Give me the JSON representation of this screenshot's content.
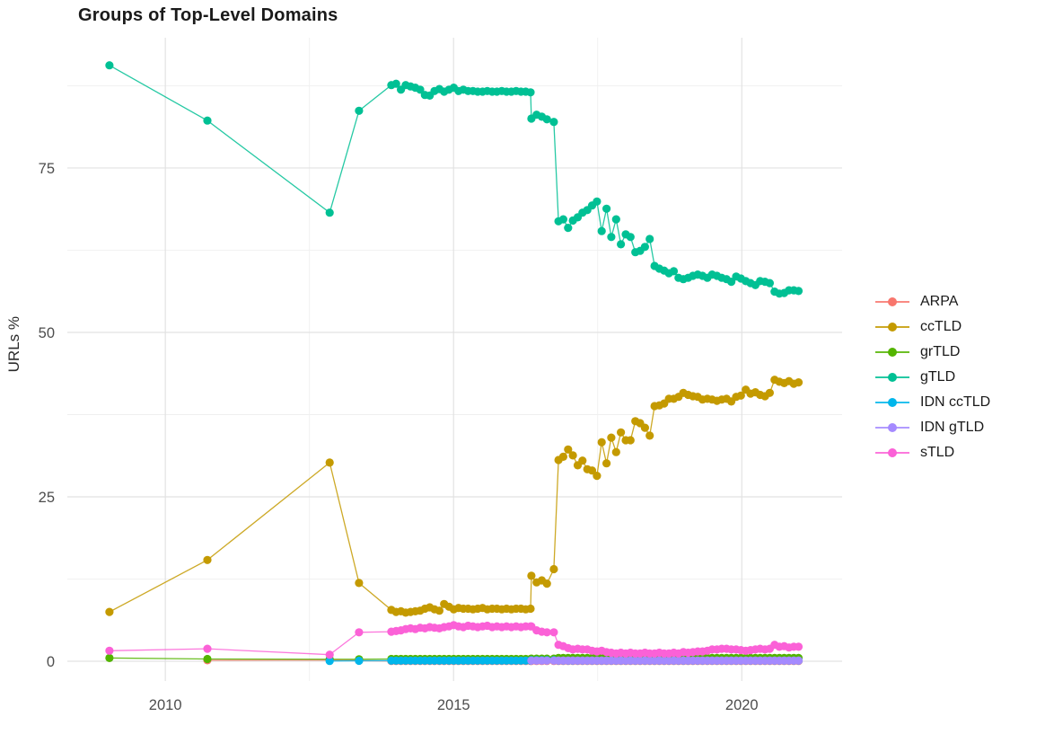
{
  "chart_data": {
    "type": "line",
    "title": "Groups of Top-Level Domains",
    "xlabel": "",
    "ylabel": "URLs %",
    "grid": true,
    "legend_position": "right",
    "xlim": [
      2008.3,
      2021.74
    ],
    "ylim": [
      -3,
      94.8
    ],
    "x_ticks": [
      2010,
      2015,
      2020
    ],
    "x_tick_labels": [
      "2010",
      "2015",
      "2020"
    ],
    "x_minor_ticks": [
      2012.5,
      2017.5
    ],
    "y_ticks": [
      0,
      25,
      50,
      75
    ],
    "y_tick_labels": [
      "0",
      "25",
      "50",
      "75"
    ],
    "y_minor_ticks": [
      12.5,
      37.5,
      62.5,
      87.5
    ],
    "colors": {
      "major_grid": "#e2e2e2",
      "minor_grid": "#efefef",
      "axis_text": "#4d4d4d"
    },
    "series": [
      {
        "name": "ARPA",
        "color": "#F8766D",
        "segments": [
          {
            "points": [
              [
                2010.73,
                0.15
              ],
              [
                2012.85,
                0.2
              ],
              [
                2013.36,
                0.1
              ]
            ]
          },
          {
            "start": 2013.92,
            "step": 0.0833,
            "n": 30,
            "value": 0.05
          },
          {
            "points": [
              [
                2016.35,
                0.05
              ],
              [
                2016.44,
                0.05
              ],
              [
                2016.53,
                0.05
              ],
              [
                2016.62,
                0.05
              ],
              [
                2016.74,
                0.05
              ]
            ]
          },
          {
            "start": 2016.82,
            "step": 0.0833,
            "n": 51,
            "value": 0.05
          }
        ]
      },
      {
        "name": "ccTLD",
        "color": "#C49A00",
        "segments": [
          {
            "points": [
              [
                2009.03,
                7.5
              ],
              [
                2010.73,
                15.4
              ],
              [
                2012.85,
                30.2
              ],
              [
                2013.36,
                11.9
              ]
            ]
          },
          {
            "start": 2013.92,
            "step": 0.0833,
            "values": [
              7.8,
              7.5,
              7.6,
              7.4,
              7.5,
              7.6,
              7.7,
              8.0,
              8.2,
              7.9,
              7.7,
              8.7,
              8.3,
              7.9,
              8.1,
              8.0,
              8.0,
              7.9,
              8.0,
              8.1,
              7.9,
              8.0,
              8.0,
              7.9,
              8.0,
              7.9,
              8.0,
              8.0,
              7.9,
              8.0
            ]
          },
          {
            "points": [
              [
                2016.35,
                13.0
              ],
              [
                2016.44,
                12.0
              ],
              [
                2016.53,
                12.3
              ],
              [
                2016.62,
                11.8
              ],
              [
                2016.74,
                14.0
              ]
            ]
          },
          {
            "start": 2016.82,
            "step": 0.0833,
            "values": [
              30.6,
              31.1,
              32.2,
              31.3,
              29.8,
              30.5,
              29.2,
              29.0,
              28.2,
              33.3,
              30.1,
              34.0,
              31.8,
              34.8,
              33.6,
              33.6,
              36.5,
              36.2,
              35.5,
              34.3,
              38.8,
              38.9,
              39.2,
              39.9,
              39.9,
              40.2,
              40.8,
              40.5,
              40.3,
              40.2,
              39.8,
              39.9,
              39.8,
              39.6,
              39.8,
              39.9,
              39.5,
              40.2,
              40.4,
              41.3,
              40.7,
              40.9,
              40.5,
              40.3,
              40.8,
              42.8,
              42.5,
              42.3,
              42.6,
              42.2,
              42.4
            ]
          }
        ]
      },
      {
        "name": "grTLD",
        "color": "#53B400",
        "segments": [
          {
            "points": [
              [
                2009.03,
                0.5
              ],
              [
                2010.73,
                0.35
              ],
              [
                2012.85,
                0.3
              ],
              [
                2013.36,
                0.3
              ]
            ]
          },
          {
            "start": 2013.92,
            "step": 0.0833,
            "n": 30,
            "value": 0.35
          },
          {
            "points": [
              [
                2016.35,
                0.4
              ],
              [
                2016.44,
                0.4
              ],
              [
                2016.53,
                0.4
              ],
              [
                2016.62,
                0.4
              ],
              [
                2016.74,
                0.4
              ]
            ]
          },
          {
            "start": 2016.82,
            "step": 0.0833,
            "n": 51,
            "value": 0.5
          }
        ]
      },
      {
        "name": "gTLD",
        "color": "#00C094",
        "segments": [
          {
            "points": [
              [
                2009.03,
                90.6
              ],
              [
                2010.73,
                82.2
              ],
              [
                2012.85,
                68.2
              ],
              [
                2013.36,
                83.7
              ]
            ]
          },
          {
            "start": 2013.92,
            "step": 0.0833,
            "values": [
              87.6,
              87.8,
              86.9,
              87.6,
              87.4,
              87.2,
              86.9,
              86.1,
              86.0,
              86.7,
              87.0,
              86.6,
              86.9,
              87.2,
              86.7,
              86.9,
              86.7,
              86.7,
              86.6,
              86.6,
              86.7,
              86.6,
              86.6,
              86.7,
              86.6,
              86.6,
              86.7,
              86.6,
              86.6,
              86.5
            ]
          },
          {
            "points": [
              [
                2016.35,
                82.5
              ],
              [
                2016.44,
                83.1
              ],
              [
                2016.53,
                82.8
              ],
              [
                2016.62,
                82.4
              ],
              [
                2016.74,
                82.0
              ]
            ]
          },
          {
            "start": 2016.82,
            "step": 0.0833,
            "values": [
              66.9,
              67.2,
              65.9,
              67.0,
              67.5,
              68.2,
              68.6,
              69.3,
              69.9,
              65.4,
              68.8,
              64.5,
              67.2,
              63.4,
              64.9,
              64.5,
              62.2,
              62.4,
              63.0,
              64.2,
              60.1,
              59.7,
              59.4,
              59.0,
              59.3,
              58.3,
              58.1,
              58.3,
              58.6,
              58.8,
              58.6,
              58.3,
              58.8,
              58.6,
              58.3,
              58.1,
              57.7,
              58.5,
              58.2,
              57.8,
              57.5,
              57.2,
              57.8,
              57.7,
              57.5,
              56.2,
              55.9,
              56.0,
              56.4,
              56.4,
              56.3
            ]
          }
        ]
      },
      {
        "name": "IDN ccTLD",
        "color": "#00B6EB",
        "segments": [
          {
            "points": [
              [
                2012.85,
                0.05
              ],
              [
                2013.36,
                0.08
              ]
            ]
          },
          {
            "start": 2013.92,
            "step": 0.0833,
            "n": 30,
            "value": 0.1
          },
          {
            "points": [
              [
                2016.35,
                0.15
              ],
              [
                2016.44,
                0.15
              ],
              [
                2016.53,
                0.15
              ],
              [
                2016.62,
                0.15
              ],
              [
                2016.74,
                0.15
              ]
            ]
          },
          {
            "start": 2016.82,
            "step": 0.0833,
            "n": 51,
            "value": 0.1
          }
        ]
      },
      {
        "name": "IDN gTLD",
        "color": "#A58AFF",
        "segments": [
          {
            "points": [
              [
                2016.35,
                0.1
              ],
              [
                2016.44,
                0.1
              ],
              [
                2016.53,
                0.1
              ],
              [
                2016.62,
                0.1
              ],
              [
                2016.74,
                0.1
              ]
            ]
          },
          {
            "start": 2016.82,
            "step": 0.0833,
            "n": 51,
            "value": 0.12
          }
        ]
      },
      {
        "name": "sTLD",
        "color": "#FB61D7",
        "segments": [
          {
            "points": [
              [
                2009.03,
                1.6
              ],
              [
                2010.73,
                1.9
              ],
              [
                2012.85,
                1.0
              ],
              [
                2013.36,
                4.4
              ]
            ]
          },
          {
            "start": 2013.92,
            "step": 0.0833,
            "values": [
              4.5,
              4.6,
              4.7,
              4.9,
              5.0,
              4.9,
              5.1,
              5.0,
              5.2,
              5.1,
              5.0,
              5.2,
              5.3,
              5.5,
              5.3,
              5.2,
              5.4,
              5.3,
              5.2,
              5.3,
              5.4,
              5.2,
              5.3,
              5.2,
              5.3,
              5.2,
              5.3,
              5.2,
              5.3,
              5.3
            ]
          },
          {
            "points": [
              [
                2016.35,
                5.3
              ],
              [
                2016.44,
                4.7
              ],
              [
                2016.53,
                4.5
              ],
              [
                2016.62,
                4.4
              ],
              [
                2016.74,
                4.4
              ]
            ]
          },
          {
            "start": 2016.82,
            "step": 0.0833,
            "values": [
              2.5,
              2.3,
              2.0,
              1.8,
              1.9,
              1.8,
              1.8,
              1.6,
              1.5,
              1.6,
              1.4,
              1.3,
              1.2,
              1.3,
              1.2,
              1.3,
              1.2,
              1.2,
              1.3,
              1.2,
              1.2,
              1.3,
              1.2,
              1.2,
              1.3,
              1.2,
              1.4,
              1.3,
              1.4,
              1.5,
              1.5,
              1.6,
              1.8,
              1.8,
              1.9,
              1.9,
              1.8,
              1.8,
              1.7,
              1.6,
              1.7,
              1.8,
              1.9,
              1.8,
              1.9,
              2.5,
              2.2,
              2.3,
              2.1,
              2.2,
              2.2
            ]
          }
        ]
      }
    ],
    "legend": [
      "ARPA",
      "ccTLD",
      "grTLD",
      "gTLD",
      "IDN ccTLD",
      "IDN gTLD",
      "sTLD"
    ]
  }
}
